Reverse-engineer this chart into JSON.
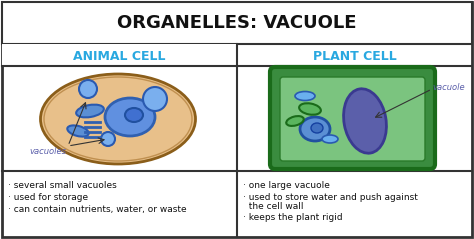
{
  "title": "ORGANELLES: VACUOLE",
  "left_header": "ANIMAL CELL",
  "right_header": "PLANT CELL",
  "left_bullet1": "· several small vacuoles",
  "left_bullet2": "· used for storage",
  "left_bullet3": "· can contain nutrients, water, or waste",
  "right_bullet1": "· one large vacuole",
  "right_bullet2": "· used to store water and push against",
  "right_bullet2b": "  the cell wall",
  "right_bullet3": "· keeps the plant rigid",
  "bg_color": "#ffffff",
  "border_color": "#333333",
  "title_bg": "#ffffff",
  "header_color_left": "#29a8e0",
  "header_color_right": "#29a8e0",
  "animal_cell_outer": "#d4955a",
  "animal_cell_inner": "#e8b87a",
  "animal_vacuole_color": "#5b8fd4",
  "plant_cell_outer": "#3a8c3f",
  "plant_cell_inner": "#5ab55e",
  "plant_vacuole_color": "#5b5faa",
  "plant_cytoplasm": "#7bc47f",
  "label_vacuoles": "vacuoles",
  "label_vacuole": "vacuole"
}
